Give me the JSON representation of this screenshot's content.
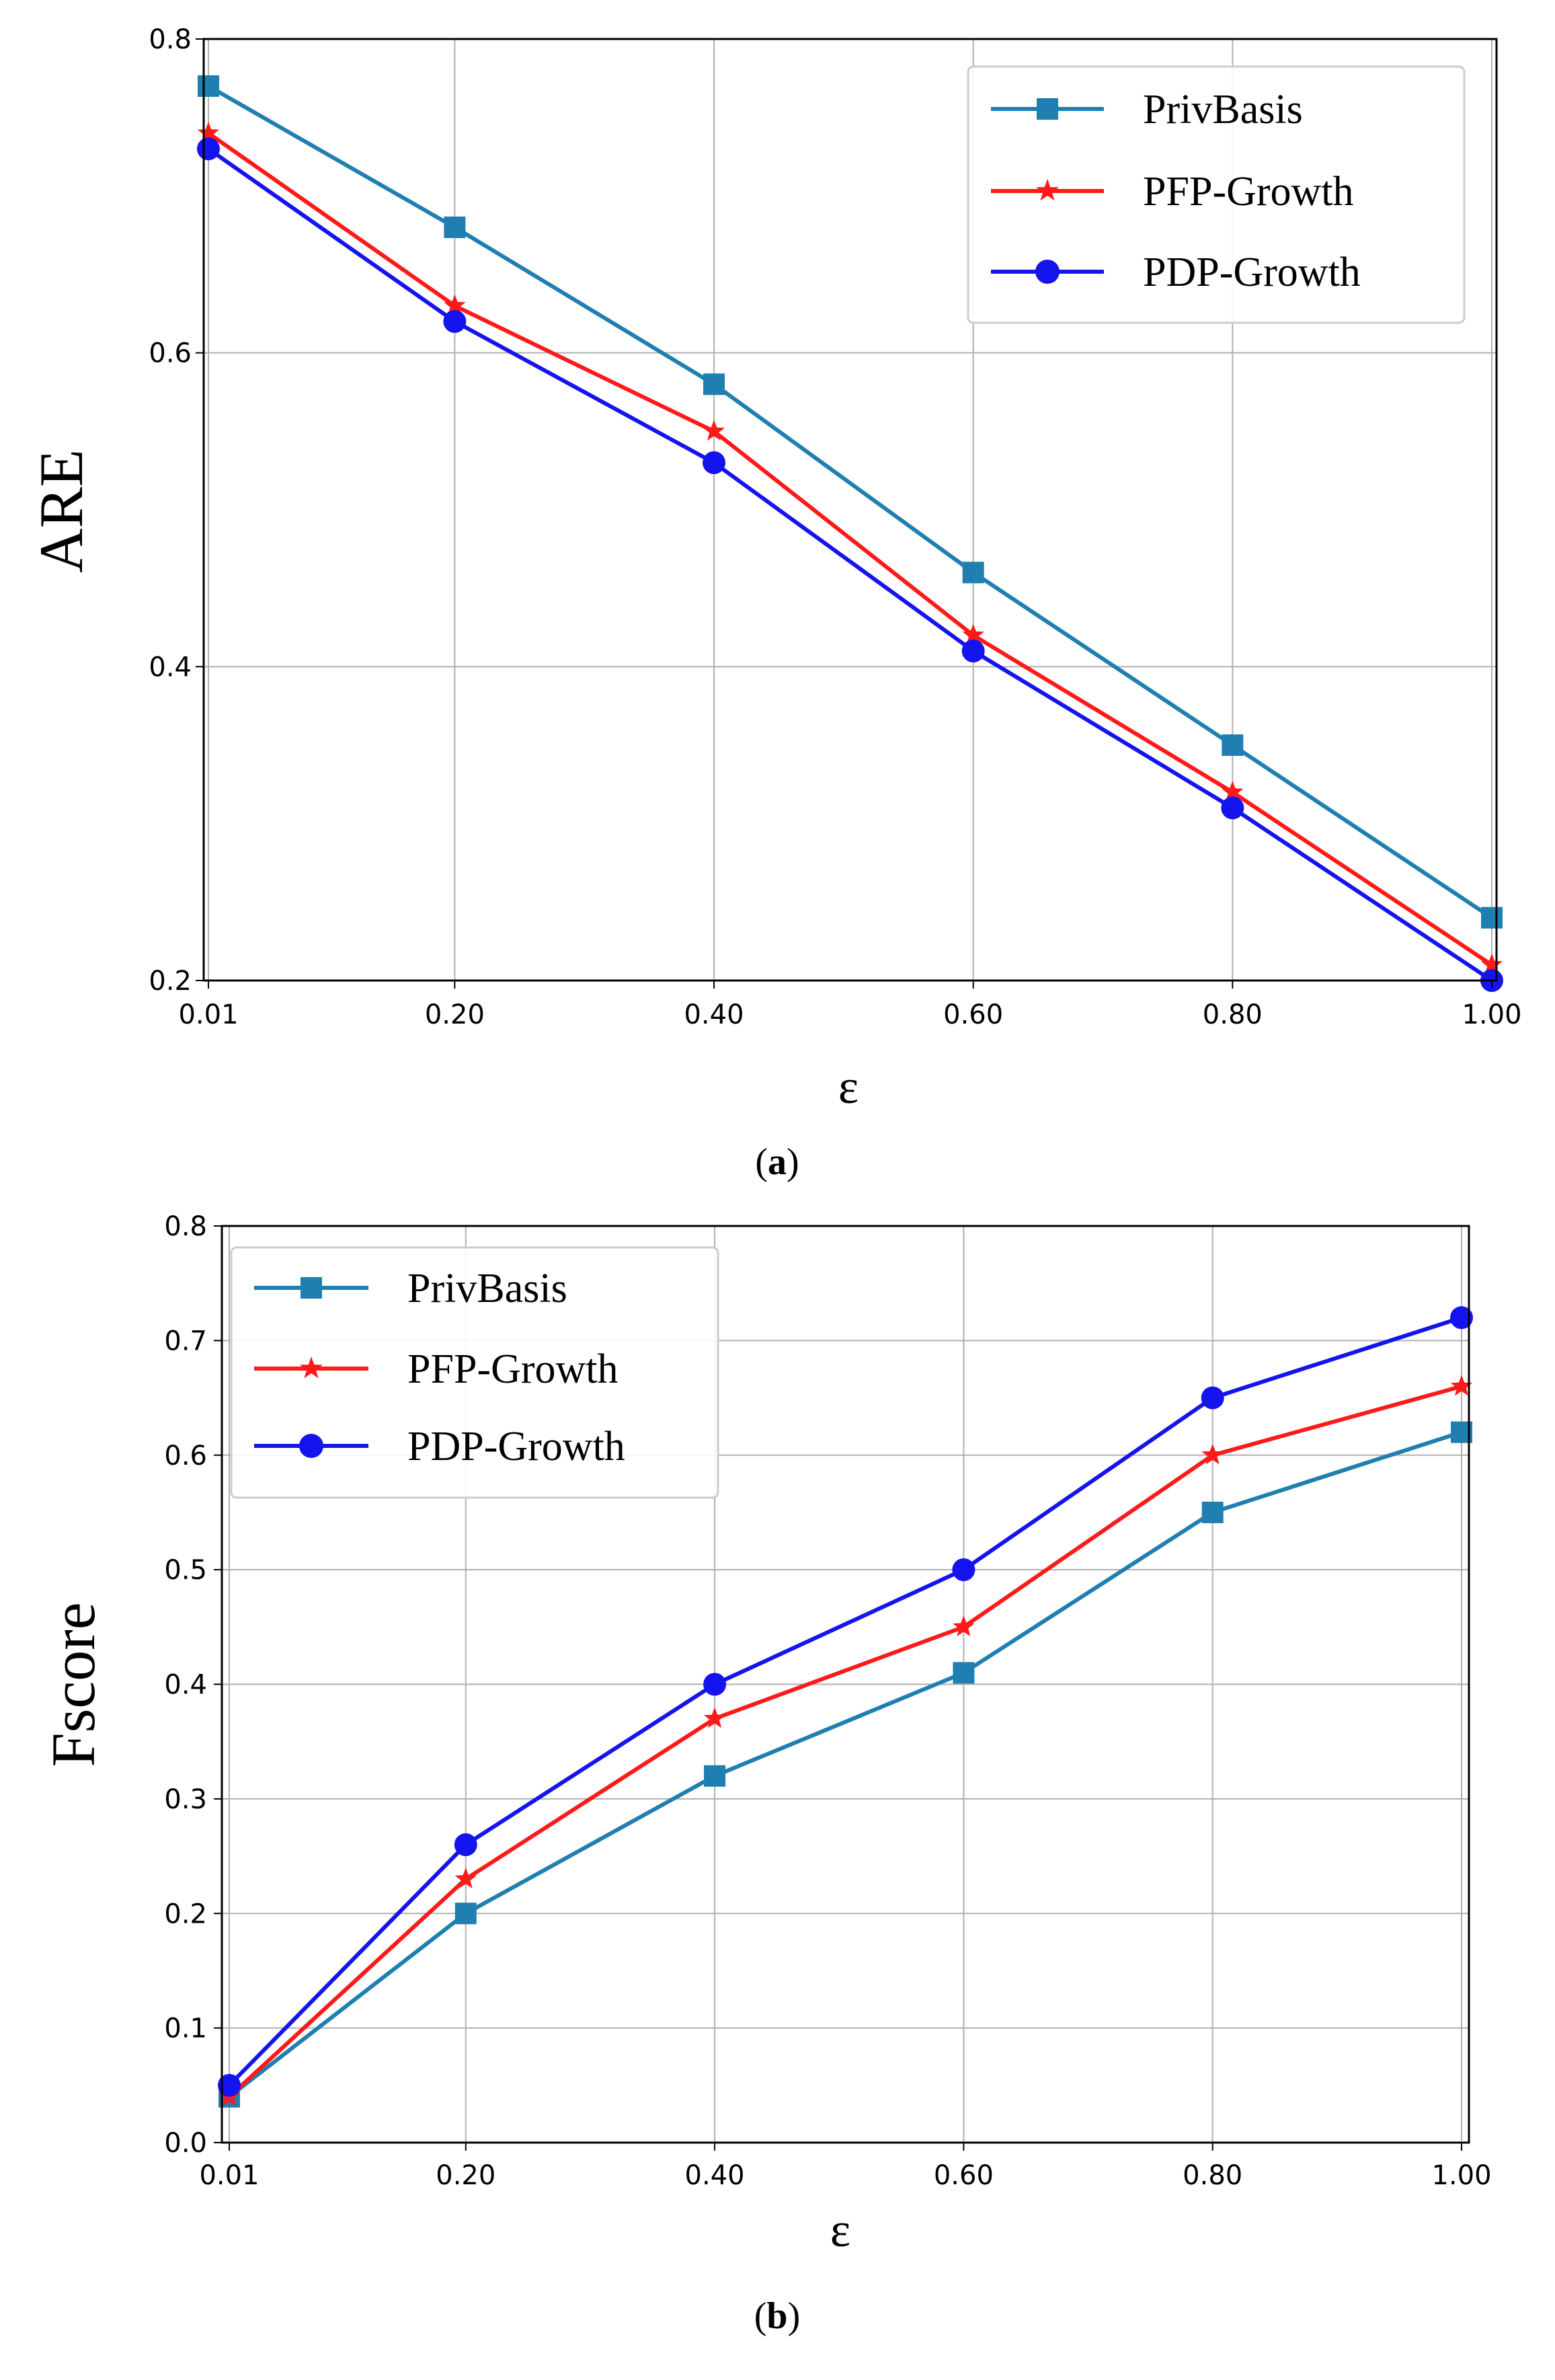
{
  "chart_data": [
    {
      "type": "line",
      "caption_open": "(",
      "caption_letter": "a",
      "caption_close": ")",
      "xlabel": "ε",
      "ylabel": "ARE",
      "x": [
        0.01,
        0.2,
        0.4,
        0.6,
        0.8,
        1.0
      ],
      "xtick_labels": [
        "0.01",
        "0.20",
        "0.40",
        "0.60",
        "0.80",
        "1.00"
      ],
      "ylim": [
        0.2,
        0.8
      ],
      "yticks": [
        0.2,
        0.4,
        0.6,
        0.8
      ],
      "ytick_labels": [
        "0.2",
        "0.4",
        "0.6",
        "0.8"
      ],
      "grid": true,
      "legend_position": "top-right",
      "series": [
        {
          "name": "PrivBasis",
          "color": "#1f7fb0",
          "marker": "square",
          "values": [
            0.77,
            0.68,
            0.58,
            0.46,
            0.35,
            0.24
          ]
        },
        {
          "name": "PFP-Growth",
          "color": "#ff1a1a",
          "marker": "star",
          "values": [
            0.74,
            0.63,
            0.55,
            0.42,
            0.32,
            0.21
          ]
        },
        {
          "name": "PDP-Growth",
          "color": "#1414ee",
          "marker": "circle",
          "values": [
            0.73,
            0.62,
            0.53,
            0.41,
            0.31,
            0.2
          ]
        }
      ]
    },
    {
      "type": "line",
      "caption_open": "(",
      "caption_letter": "b",
      "caption_close": ")",
      "xlabel": "ε",
      "ylabel": "Fscore",
      "x": [
        0.01,
        0.2,
        0.4,
        0.6,
        0.8,
        1.0
      ],
      "xtick_labels": [
        "0.01",
        "0.20",
        "0.40",
        "0.60",
        "0.80",
        "1.00"
      ],
      "ylim": [
        0.0,
        0.8
      ],
      "yticks": [
        0.0,
        0.1,
        0.2,
        0.3,
        0.4,
        0.5,
        0.6,
        0.7,
        0.8
      ],
      "ytick_labels": [
        "0.0",
        "0.1",
        "0.2",
        "0.3",
        "0.4",
        "0.5",
        "0.6",
        "0.7",
        "0.8"
      ],
      "grid": true,
      "legend_position": "top-left",
      "series": [
        {
          "name": "PrivBasis",
          "color": "#1f7fb0",
          "marker": "square",
          "values": [
            0.04,
            0.2,
            0.32,
            0.41,
            0.55,
            0.62
          ]
        },
        {
          "name": "PFP-Growth",
          "color": "#ff1a1a",
          "marker": "star",
          "values": [
            0.04,
            0.23,
            0.37,
            0.45,
            0.6,
            0.66
          ]
        },
        {
          "name": "PDP-Growth",
          "color": "#1414ee",
          "marker": "circle",
          "values": [
            0.05,
            0.26,
            0.4,
            0.5,
            0.65,
            0.72
          ]
        }
      ]
    }
  ]
}
